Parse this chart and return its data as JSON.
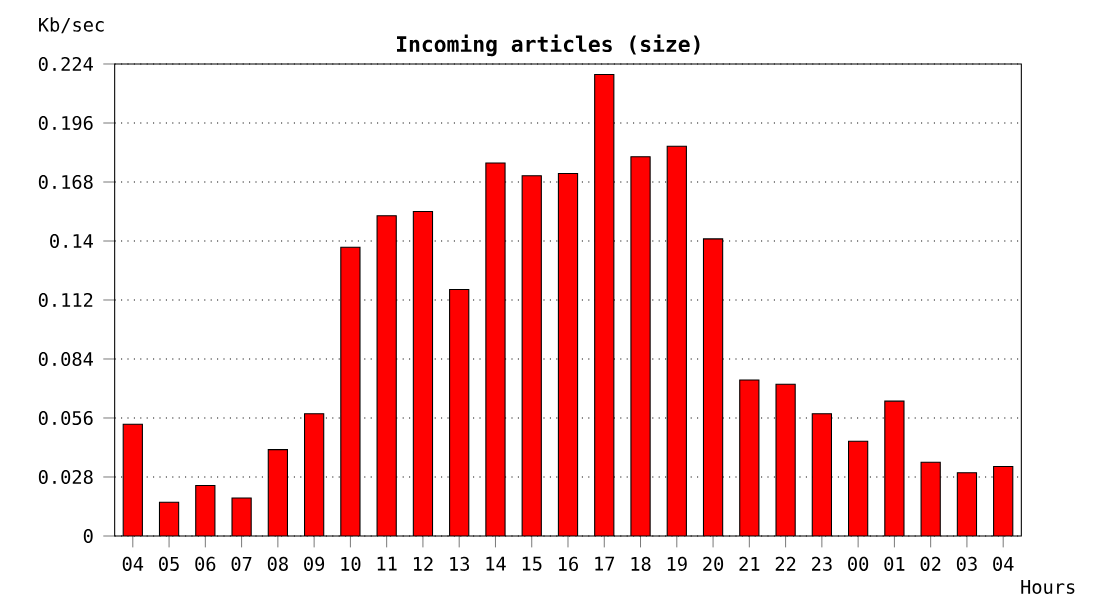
{
  "chart_data": {
    "type": "bar",
    "title": "Incoming articles (size)",
    "xlabel": "Hours",
    "ylabel": "Kb/sec",
    "categories": [
      "04",
      "05",
      "06",
      "07",
      "08",
      "09",
      "10",
      "11",
      "12",
      "13",
      "14",
      "15",
      "16",
      "17",
      "18",
      "19",
      "20",
      "21",
      "22",
      "23",
      "00",
      "01",
      "02",
      "03",
      "04"
    ],
    "values": [
      0.053,
      0.016,
      0.024,
      0.018,
      0.041,
      0.058,
      0.137,
      0.152,
      0.154,
      0.117,
      0.177,
      0.171,
      0.172,
      0.219,
      0.18,
      0.185,
      0.141,
      0.074,
      0.072,
      0.058,
      0.045,
      0.064,
      0.035,
      0.03,
      0.033
    ],
    "color": "#ff0000",
    "ylim": [
      0,
      0.224
    ],
    "yticks": [
      0,
      0.028,
      0.056,
      0.084,
      0.112,
      0.14,
      0.168,
      0.196,
      0.224
    ],
    "grid": "y"
  }
}
